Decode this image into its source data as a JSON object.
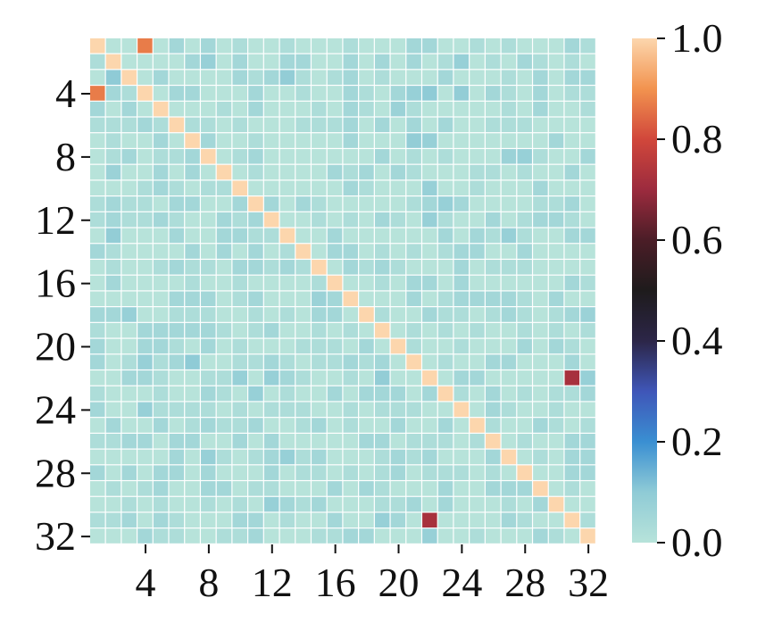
{
  "chart_data": {
    "type": "heatmap",
    "title": "",
    "xlabel": "",
    "ylabel": "",
    "n": 32,
    "x_ticks": [
      4,
      8,
      12,
      16,
      20,
      24,
      28,
      32
    ],
    "y_ticks": [
      4,
      8,
      12,
      16,
      20,
      24,
      28,
      32
    ],
    "x_tick_labels": [
      "4",
      "8",
      "12",
      "16",
      "20",
      "24",
      "28",
      "32"
    ],
    "y_tick_labels": [
      "4",
      "8",
      "12",
      "16",
      "20",
      "24",
      "28",
      "32"
    ],
    "colorbar": {
      "range": [
        0.0,
        1.0
      ],
      "tick_values": [
        0.0,
        0.2,
        0.4,
        0.6,
        0.8,
        1.0
      ],
      "tick_labels": [
        "0.0",
        "0.2",
        "0.4",
        "0.6",
        "0.8",
        "1.0"
      ],
      "colormap": "icefire"
    },
    "grid_lines": true,
    "grid_color": "#ffffff",
    "diagonal_value": 1.0,
    "background_value": 0.0,
    "off_diagonal_values": [
      {
        "row": 1,
        "col": 4,
        "value": 0.87
      },
      {
        "row": 4,
        "col": 1,
        "value": 0.87
      },
      {
        "row": 22,
        "col": 31,
        "value": 0.72
      },
      {
        "row": 31,
        "col": 22,
        "value": 0.72
      },
      {
        "row": 2,
        "col": 8,
        "value": 0.08
      },
      {
        "row": 2,
        "col": 24,
        "value": 0.08
      },
      {
        "row": 3,
        "col": 13,
        "value": 0.09
      },
      {
        "row": 3,
        "col": 2,
        "value": 0.1
      },
      {
        "row": 4,
        "col": 21,
        "value": 0.08
      },
      {
        "row": 4,
        "col": 22,
        "value": 0.1
      },
      {
        "row": 4,
        "col": 24,
        "value": 0.09
      },
      {
        "row": 5,
        "col": 20,
        "value": 0.07
      },
      {
        "row": 7,
        "col": 21,
        "value": 0.09
      },
      {
        "row": 7,
        "col": 22,
        "value": 0.08
      },
      {
        "row": 8,
        "col": 28,
        "value": 0.08
      },
      {
        "row": 8,
        "col": 27,
        "value": 0.07
      },
      {
        "row": 9,
        "col": 2,
        "value": 0.07
      },
      {
        "row": 10,
        "col": 22,
        "value": 0.08
      },
      {
        "row": 11,
        "col": 23,
        "value": 0.08
      },
      {
        "row": 12,
        "col": 22,
        "value": 0.08
      },
      {
        "row": 13,
        "col": 2,
        "value": 0.09
      },
      {
        "row": 13,
        "col": 27,
        "value": 0.08
      },
      {
        "row": 17,
        "col": 15,
        "value": 0.07
      },
      {
        "row": 18,
        "col": 3,
        "value": 0.08
      },
      {
        "row": 18,
        "col": 32,
        "value": 0.07
      },
      {
        "row": 21,
        "col": 4,
        "value": 0.08
      },
      {
        "row": 21,
        "col": 7,
        "value": 0.1
      },
      {
        "row": 22,
        "col": 10,
        "value": 0.08
      },
      {
        "row": 22,
        "col": 12,
        "value": 0.08
      },
      {
        "row": 22,
        "col": 19,
        "value": 0.09
      },
      {
        "row": 22,
        "col": 32,
        "value": 0.08
      },
      {
        "row": 23,
        "col": 11,
        "value": 0.08
      },
      {
        "row": 24,
        "col": 4,
        "value": 0.08
      },
      {
        "row": 27,
        "col": 8,
        "value": 0.08
      },
      {
        "row": 27,
        "col": 13,
        "value": 0.08
      },
      {
        "row": 30,
        "col": 12,
        "value": 0.08
      },
      {
        "row": 31,
        "col": 19,
        "value": 0.08
      },
      {
        "row": 32,
        "col": 22,
        "value": 0.08
      }
    ]
  }
}
